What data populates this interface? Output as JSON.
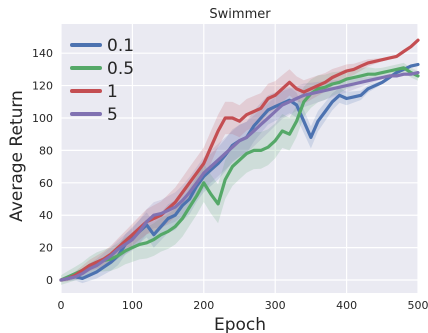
{
  "chart_data": {
    "type": "line",
    "title": "Swimmer",
    "xlabel": "Epoch",
    "ylabel": "Average Return",
    "xlim": [
      0,
      500
    ],
    "ylim": [
      -8,
      158
    ],
    "xticks": [
      0,
      100,
      200,
      300,
      400,
      500
    ],
    "yticks": [
      0,
      20,
      40,
      60,
      80,
      100,
      120,
      140
    ],
    "grid": true,
    "background": "#eaeaf2",
    "legend_position": "top-left",
    "series": [
      {
        "name": "0.1",
        "color": "#4c72b0",
        "x": [
          0,
          10,
          20,
          30,
          40,
          50,
          60,
          70,
          80,
          90,
          100,
          110,
          120,
          130,
          140,
          150,
          160,
          170,
          180,
          190,
          200,
          210,
          220,
          230,
          240,
          250,
          260,
          270,
          280,
          290,
          300,
          310,
          320,
          330,
          340,
          350,
          360,
          370,
          380,
          390,
          400,
          410,
          420,
          430,
          440,
          450,
          460,
          470,
          480,
          490,
          500
        ],
        "y": [
          0,
          1,
          2,
          1,
          3,
          5,
          8,
          11,
          15,
          22,
          26,
          30,
          34,
          28,
          33,
          38,
          40,
          46,
          50,
          58,
          64,
          68,
          72,
          77,
          83,
          86,
          88,
          95,
          100,
          105,
          107,
          109,
          111,
          108,
          98,
          88,
          98,
          104,
          110,
          114,
          112,
          113,
          114,
          118,
          120,
          122,
          125,
          128,
          130,
          132,
          133
        ]
      },
      {
        "name": "0.5",
        "color": "#55a868",
        "x": [
          0,
          10,
          20,
          30,
          40,
          50,
          60,
          70,
          80,
          90,
          100,
          110,
          120,
          130,
          140,
          150,
          160,
          170,
          180,
          190,
          200,
          210,
          220,
          230,
          240,
          250,
          260,
          270,
          280,
          290,
          300,
          310,
          320,
          330,
          340,
          350,
          360,
          370,
          380,
          390,
          400,
          410,
          420,
          430,
          440,
          450,
          460,
          470,
          480,
          490,
          500
        ],
        "y": [
          0,
          2,
          4,
          6,
          9,
          11,
          12,
          13,
          15,
          18,
          20,
          22,
          23,
          25,
          28,
          30,
          33,
          38,
          45,
          52,
          60,
          53,
          47,
          62,
          70,
          74,
          78,
          80,
          80,
          82,
          86,
          92,
          90,
          98,
          110,
          115,
          118,
          119,
          121,
          122,
          124,
          125,
          126,
          127,
          127,
          128,
          129,
          130,
          131,
          128,
          126
        ]
      },
      {
        "name": "1",
        "color": "#c44e52",
        "x": [
          0,
          10,
          20,
          30,
          40,
          50,
          60,
          70,
          80,
          90,
          100,
          110,
          120,
          130,
          140,
          150,
          160,
          170,
          180,
          190,
          200,
          210,
          220,
          230,
          240,
          250,
          260,
          270,
          280,
          290,
          300,
          310,
          320,
          330,
          340,
          350,
          360,
          370,
          380,
          390,
          400,
          410,
          420,
          430,
          440,
          450,
          460,
          470,
          480,
          490,
          500
        ],
        "y": [
          0,
          1,
          3,
          6,
          9,
          11,
          13,
          16,
          20,
          24,
          28,
          32,
          36,
          38,
          40,
          44,
          48,
          54,
          60,
          66,
          72,
          82,
          92,
          100,
          100,
          98,
          102,
          104,
          106,
          112,
          114,
          118,
          122,
          118,
          116,
          118,
          120,
          122,
          125,
          127,
          129,
          130,
          132,
          134,
          135,
          136,
          137,
          138,
          141,
          144,
          148
        ]
      },
      {
        "name": "5",
        "color": "#8172b2",
        "x": [
          0,
          10,
          20,
          30,
          40,
          50,
          60,
          70,
          80,
          90,
          100,
          110,
          120,
          130,
          140,
          150,
          160,
          170,
          180,
          190,
          200,
          210,
          220,
          230,
          240,
          250,
          260,
          270,
          280,
          290,
          300,
          310,
          320,
          330,
          340,
          350,
          360,
          370,
          380,
          390,
          400,
          410,
          420,
          430,
          440,
          450,
          460,
          470,
          480,
          490,
          500
        ],
        "y": [
          0,
          1,
          2,
          4,
          7,
          9,
          12,
          15,
          19,
          22,
          25,
          30,
          36,
          40,
          41,
          43,
          45,
          49,
          54,
          60,
          66,
          70,
          74,
          78,
          82,
          86,
          88,
          92,
          96,
          100,
          104,
          108,
          110,
          112,
          114,
          115,
          116,
          117,
          118,
          119,
          120,
          121,
          122,
          123,
          124,
          125,
          126,
          126,
          127,
          127,
          128
        ]
      }
    ]
  }
}
